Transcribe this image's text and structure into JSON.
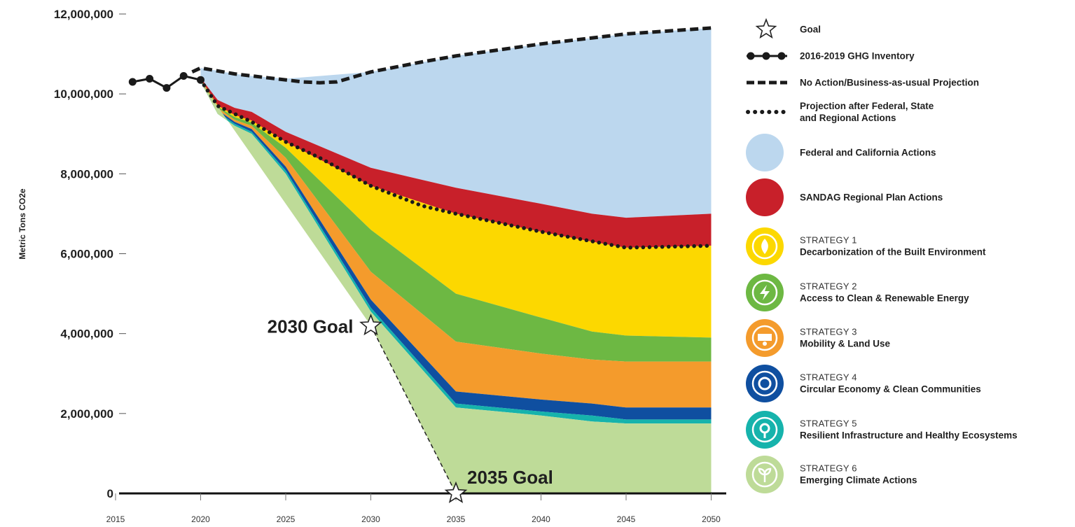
{
  "colors": {
    "federal": "#bcd7ee",
    "sandag": "#c8202a",
    "s1": "#fcd800",
    "s2": "#6db843",
    "s3": "#f49b2c",
    "s4": "#0f4fa0",
    "s5": "#16b3ac",
    "s6": "#bedb98",
    "line": "#1a1a1a"
  },
  "chart_data": {
    "type": "area",
    "title": "",
    "ylabel": "Metric Tons CO2e",
    "xlabel": "",
    "xlim": [
      2015,
      2050
    ],
    "ylim": [
      0,
      12000000
    ],
    "grid": false,
    "legend_position": "right",
    "y_ticks": [
      {
        "value": 0,
        "label": "0"
      },
      {
        "value": 2000000,
        "label": "2,000,000"
      },
      {
        "value": 4000000,
        "label": "4,000,000"
      },
      {
        "value": 6000000,
        "label": "6,000,000"
      },
      {
        "value": 8000000,
        "label": "8,000,000"
      },
      {
        "value": 10000000,
        "label": "10,000,000"
      },
      {
        "value": 12000000,
        "label": "12,000,000"
      }
    ],
    "x_ticks": [
      {
        "value": 2015,
        "label": "2015"
      },
      {
        "value": 2020,
        "label": "2020"
      },
      {
        "value": 2025,
        "label": "2025"
      },
      {
        "value": 2030,
        "label": "2030"
      },
      {
        "value": 2035,
        "label": "2035"
      },
      {
        "value": 2040,
        "label": "2040"
      },
      {
        "value": 2045,
        "label": "2045"
      },
      {
        "value": 2050,
        "label": "2050"
      }
    ],
    "inventory": {
      "x": [
        2016,
        2017,
        2018,
        2019,
        2020
      ],
      "y": [
        10300000,
        10380000,
        10150000,
        10450000,
        10350000
      ]
    },
    "bau": {
      "x": [
        2019.5,
        2020,
        2022,
        2024,
        2026,
        2027,
        2028,
        2030,
        2033,
        2035,
        2040,
        2045,
        2050
      ],
      "y": [
        10550000,
        10650000,
        10500000,
        10400000,
        10300000,
        10280000,
        10300000,
        10550000,
        10800000,
        10950000,
        11250000,
        11500000,
        11650000
      ]
    },
    "after_actions": {
      "x": [
        2020,
        2021,
        2023,
        2025,
        2027,
        2030,
        2033,
        2035,
        2040,
        2045,
        2050
      ],
      "y": [
        10350000,
        9700000,
        9300000,
        8800000,
        8400000,
        7700000,
        7200000,
        7000000,
        6550000,
        6150000,
        6200000
      ]
    },
    "layers_x": [
      2020,
      2021,
      2022,
      2023,
      2025,
      2030,
      2035,
      2040,
      2043,
      2045,
      2050
    ],
    "stack_boundaries": [
      {
        "name": "s6_top",
        "values": [
          10300000,
          9500000,
          9200000,
          9000000,
          8000000,
          4550000,
          2150000,
          1950000,
          1800000,
          1750000,
          1750000
        ]
      },
      {
        "name": "s5_top",
        "values": [
          10320000,
          9550000,
          9250000,
          9050000,
          8080000,
          4650000,
          2250000,
          2050000,
          1950000,
          1850000,
          1850000
        ]
      },
      {
        "name": "s4_top",
        "values": [
          10340000,
          9600000,
          9300000,
          9120000,
          8180000,
          4850000,
          2550000,
          2350000,
          2250000,
          2150000,
          2150000
        ]
      },
      {
        "name": "s3_top",
        "values": [
          10350000,
          9650000,
          9350000,
          9200000,
          8400000,
          5550000,
          3800000,
          3500000,
          3350000,
          3300000,
          3300000
        ]
      },
      {
        "name": "s2_top",
        "values": [
          10360000,
          9680000,
          9420000,
          9280000,
          8650000,
          6600000,
          5000000,
          4400000,
          4050000,
          3950000,
          3900000
        ]
      },
      {
        "name": "s1_top",
        "values": [
          10370000,
          9710000,
          9470000,
          9330000,
          8800000,
          7700000,
          7000000,
          6550000,
          6300000,
          6150000,
          6200000
        ]
      },
      {
        "name": "sandag_top",
        "values": [
          10400000,
          9850000,
          9650000,
          9550000,
          9050000,
          8150000,
          7650000,
          7250000,
          7000000,
          6900000,
          7000000
        ]
      },
      {
        "name": "federal_top",
        "values": [
          10650000,
          10580000,
          10500000,
          10450000,
          10380000,
          10550000,
          10950000,
          11250000,
          11400000,
          11500000,
          11650000
        ]
      }
    ],
    "goal_path": {
      "x": [
        2030,
        2035
      ],
      "y": [
        4200000,
        0
      ]
    },
    "goal_points": [
      {
        "x": 2030,
        "y": 4200000,
        "label": "2030 Goal"
      },
      {
        "x": 2035,
        "y": 0,
        "label": "2035 Goal"
      }
    ]
  },
  "legend": [
    {
      "key": "goal",
      "label": "Goal"
    },
    {
      "key": "inventory",
      "label": "2016-2019 GHG Inventory"
    },
    {
      "key": "bau",
      "label": "No Action/Business-as-usual Projection"
    },
    {
      "key": "after",
      "label": "Projection after Federal, State",
      "line2": "and Regional Actions"
    },
    {
      "key": "federal",
      "label": "Federal and California Actions"
    },
    {
      "key": "sandag",
      "label": "SANDAG Regional Plan Actions"
    },
    {
      "key": "s1",
      "strategy": "STRATEGY 1",
      "name": "Decarbonization of the Built Environment",
      "icon": "flame-leaf-icon"
    },
    {
      "key": "s2",
      "strategy": "STRATEGY 2",
      "name": "Access to Clean & Renewable Energy",
      "icon": "lightning-icon"
    },
    {
      "key": "s3",
      "strategy": "STRATEGY 3",
      "name": "Mobility & Land Use",
      "icon": "city-transit-icon"
    },
    {
      "key": "s4",
      "strategy": "STRATEGY 4",
      "name": "Circular Economy & Clean Communities",
      "icon": "recycle-icon"
    },
    {
      "key": "s5",
      "strategy": "STRATEGY 5",
      "name": "Resilient Infrastructure and Healthy Ecosystems",
      "icon": "spiral-tree-icon"
    },
    {
      "key": "s6",
      "strategy": "STRATEGY 6",
      "name": "Emerging Climate Actions",
      "icon": "sprout-icon"
    }
  ]
}
